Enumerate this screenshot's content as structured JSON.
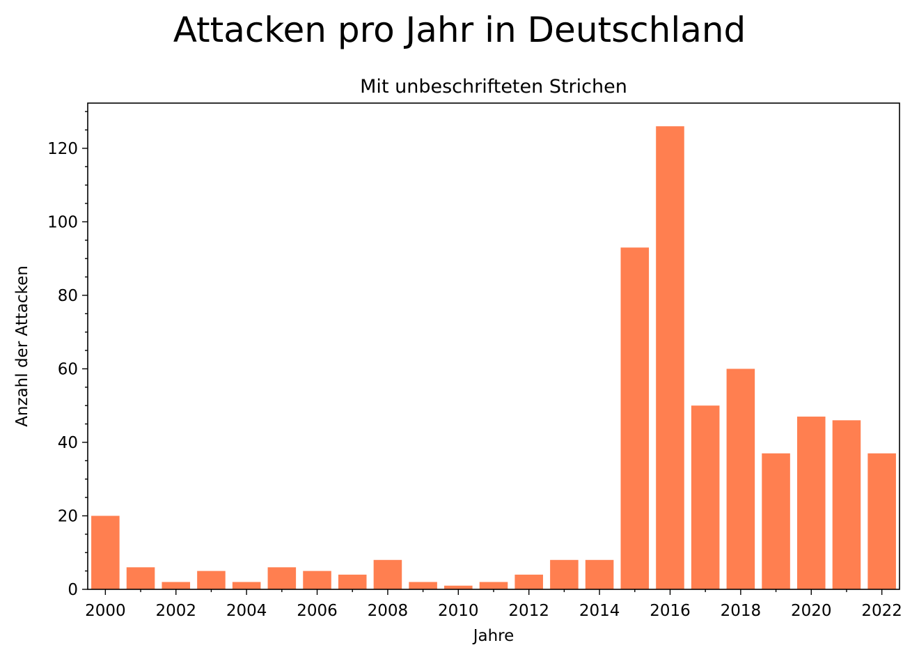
{
  "chart_data": {
    "type": "bar",
    "suptitle": "Attacken pro Jahr in Deutschland",
    "title": "Mit unbeschrifteten Strichen",
    "xlabel": "Jahre",
    "ylabel": "Anzahl der Attacken",
    "categories": [
      "2000",
      "2001",
      "2002",
      "2003",
      "2004",
      "2005",
      "2006",
      "2007",
      "2008",
      "2009",
      "2010",
      "2011",
      "2012",
      "2013",
      "2014",
      "2015",
      "2016",
      "2017",
      "2018",
      "2019",
      "2020",
      "2021",
      "2022"
    ],
    "values": [
      20,
      6,
      2,
      5,
      2,
      6,
      5,
      4,
      8,
      2,
      1,
      2,
      4,
      8,
      8,
      93,
      126,
      50,
      60,
      37,
      47,
      46,
      37
    ],
    "x_tick_labels": [
      "2000",
      "2002",
      "2004",
      "2006",
      "2008",
      "2010",
      "2012",
      "2014",
      "2016",
      "2018",
      "2020",
      "2022"
    ],
    "y_ticks": [
      0,
      20,
      40,
      60,
      80,
      100,
      120
    ],
    "ylim": [
      0,
      132.3
    ],
    "y_minor_step": 5,
    "bar_color": "#ff7f50",
    "grid": false,
    "legend": "none"
  }
}
